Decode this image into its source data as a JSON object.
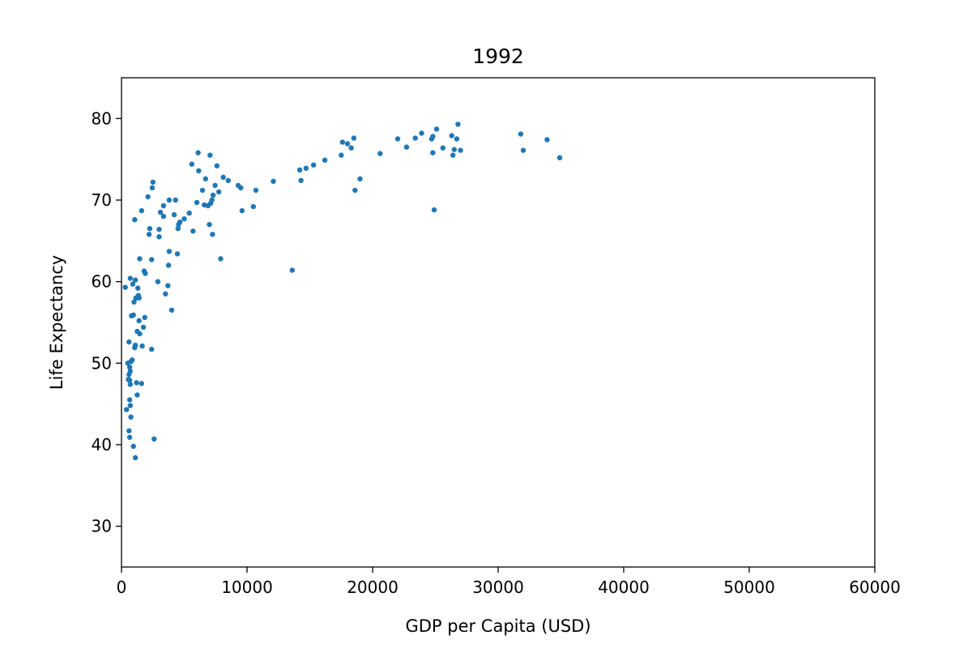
{
  "chart_data": {
    "type": "scatter",
    "title": "1992",
    "xlabel": "GDP per Capita (USD)",
    "ylabel": "Life Expectancy",
    "xlim": [
      0,
      60000
    ],
    "ylim": [
      25,
      85
    ],
    "xticks": [
      0,
      10000,
      20000,
      30000,
      40000,
      50000,
      60000
    ],
    "yticks": [
      30,
      40,
      50,
      60,
      70,
      80
    ],
    "grid": false,
    "marker_color": "#1f77b4",
    "series": [
      {
        "points": [
          [
            300,
            59.3
          ],
          [
            700,
            60.4
          ],
          [
            900,
            59.7
          ],
          [
            1100,
            60.2
          ],
          [
            1300,
            59.2
          ],
          [
            800,
            55.8
          ],
          [
            950,
            55.9
          ],
          [
            1000,
            57.5
          ],
          [
            1150,
            58.0
          ],
          [
            1400,
            58.0
          ],
          [
            1350,
            58.3
          ],
          [
            1450,
            62.8
          ],
          [
            1800,
            61.3
          ],
          [
            1900,
            61.0
          ],
          [
            2400,
            62.7
          ],
          [
            1600,
            68.7
          ],
          [
            1050,
            67.6
          ],
          [
            2100,
            70.4
          ],
          [
            2200,
            65.8
          ],
          [
            2250,
            66.5
          ],
          [
            2450,
            71.5
          ],
          [
            2500,
            72.2
          ],
          [
            2900,
            60.0
          ],
          [
            3000,
            65.5
          ],
          [
            3000,
            66.4
          ],
          [
            3100,
            68.5
          ],
          [
            3350,
            68.0
          ],
          [
            3350,
            69.3
          ],
          [
            3500,
            58.5
          ],
          [
            3700,
            59.5
          ],
          [
            3750,
            62.0
          ],
          [
            3800,
            63.7
          ],
          [
            3800,
            70.0
          ],
          [
            4000,
            56.5
          ],
          [
            4200,
            68.2
          ],
          [
            4300,
            70.0
          ],
          [
            4450,
            63.4
          ],
          [
            4500,
            66.5
          ],
          [
            4550,
            67.0
          ],
          [
            4650,
            67.3
          ],
          [
            5000,
            67.7
          ],
          [
            5400,
            68.4
          ],
          [
            5600,
            74.4
          ],
          [
            5700,
            66.2
          ],
          [
            6000,
            69.7
          ],
          [
            6100,
            75.8
          ],
          [
            6150,
            73.6
          ],
          [
            6450,
            71.2
          ],
          [
            6600,
            69.4
          ],
          [
            6700,
            72.6
          ],
          [
            6900,
            69.3
          ],
          [
            7000,
            67.0
          ],
          [
            7050,
            75.5
          ],
          [
            7100,
            69.6
          ],
          [
            7200,
            70.0
          ],
          [
            7250,
            65.8
          ],
          [
            7300,
            70.6
          ],
          [
            7450,
            71.8
          ],
          [
            7600,
            74.2
          ],
          [
            7750,
            71.0
          ],
          [
            7900,
            62.8
          ],
          [
            8100,
            72.8
          ],
          [
            8500,
            72.4
          ],
          [
            9300,
            71.8
          ],
          [
            9500,
            71.5
          ],
          [
            9600,
            68.7
          ],
          [
            10500,
            69.2
          ],
          [
            10700,
            71.2
          ],
          [
            12100,
            72.3
          ],
          [
            13600,
            61.4
          ],
          [
            14200,
            73.7
          ],
          [
            14300,
            72.4
          ],
          [
            14700,
            73.9
          ],
          [
            15300,
            74.3
          ],
          [
            16200,
            74.9
          ],
          [
            17500,
            75.5
          ],
          [
            17600,
            77.1
          ],
          [
            18000,
            76.9
          ],
          [
            18300,
            76.4
          ],
          [
            18500,
            77.6
          ],
          [
            18600,
            71.2
          ],
          [
            19000,
            72.6
          ],
          [
            20600,
            75.7
          ],
          [
            22000,
            77.5
          ],
          [
            22700,
            76.5
          ],
          [
            23400,
            77.6
          ],
          [
            23900,
            78.2
          ],
          [
            24700,
            77.5
          ],
          [
            24800,
            77.8
          ],
          [
            24800,
            75.8
          ],
          [
            24900,
            68.8
          ],
          [
            25100,
            78.7
          ],
          [
            25600,
            76.4
          ],
          [
            26300,
            77.9
          ],
          [
            26400,
            75.5
          ],
          [
            26500,
            76.2
          ],
          [
            26700,
            77.5
          ],
          [
            26800,
            79.3
          ],
          [
            27000,
            76.1
          ],
          [
            31800,
            78.1
          ],
          [
            32000,
            76.1
          ],
          [
            33900,
            77.4
          ],
          [
            34900,
            75.2
          ],
          [
            500,
            50.0
          ],
          [
            550,
            48.0
          ],
          [
            600,
            48.6
          ],
          [
            650,
            49.5
          ],
          [
            700,
            49.0
          ],
          [
            750,
            50.2
          ],
          [
            850,
            50.4
          ],
          [
            700,
            47.4
          ],
          [
            650,
            47.9
          ],
          [
            600,
            52.6
          ],
          [
            650,
            45.5
          ],
          [
            700,
            44.8
          ],
          [
            400,
            44.3
          ],
          [
            750,
            43.4
          ],
          [
            600,
            41.7
          ],
          [
            650,
            40.9
          ],
          [
            950,
            39.8
          ],
          [
            1100,
            38.4
          ],
          [
            1050,
            51.9
          ],
          [
            1100,
            52.2
          ],
          [
            1250,
            53.9
          ],
          [
            1400,
            55.2
          ],
          [
            1450,
            53.6
          ],
          [
            1650,
            52.1
          ],
          [
            1750,
            54.4
          ],
          [
            1850,
            55.6
          ],
          [
            1200,
            47.6
          ],
          [
            1600,
            47.5
          ],
          [
            1250,
            46.1
          ],
          [
            2400,
            51.7
          ],
          [
            2600,
            40.7
          ]
        ]
      }
    ]
  }
}
